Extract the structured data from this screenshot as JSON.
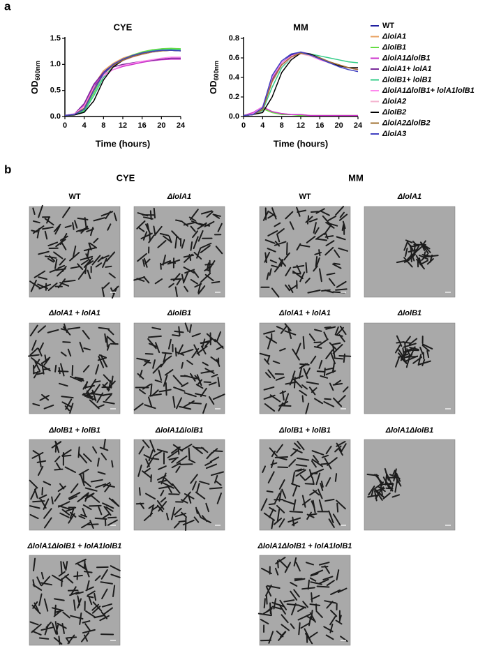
{
  "panel_labels": [
    "a",
    "b"
  ],
  "chart_data": [
    {
      "type": "line",
      "title": "CYE",
      "y_label": "OD",
      "y_label_sub": "600nm",
      "x_label": "Time (hours)",
      "x": [
        0,
        2,
        4,
        6,
        8,
        10,
        12,
        14,
        16,
        18,
        20,
        22,
        24
      ],
      "xlim": [
        0,
        24
      ],
      "xticks": [
        0,
        4,
        8,
        12,
        16,
        20,
        24
      ],
      "ylim": [
        0,
        1.5
      ],
      "yticks": [
        {
          "value": 0,
          "label": "0.0"
        },
        0.5,
        {
          "value": 1,
          "label": "1.0"
        },
        1.5
      ],
      "series": [
        {
          "color": "#1f1fa0",
          "values": [
            0.02,
            0.04,
            0.15,
            0.55,
            0.85,
            1.0,
            1.1,
            1.17,
            1.22,
            1.25,
            1.27,
            1.28,
            1.27
          ]
        },
        {
          "color": "#e8a060",
          "values": [
            0.02,
            0.04,
            0.2,
            0.6,
            0.88,
            1.02,
            1.12,
            1.18,
            1.23,
            1.26,
            1.28,
            1.29,
            1.28
          ]
        },
        {
          "color": "#66dd44",
          "values": [
            0.02,
            0.04,
            0.12,
            0.45,
            0.8,
            0.98,
            1.1,
            1.18,
            1.24,
            1.28,
            1.3,
            1.31,
            1.3
          ]
        },
        {
          "color": "#cc33cc",
          "values": [
            0.02,
            0.05,
            0.22,
            0.6,
            0.8,
            0.9,
            0.96,
            1.0,
            1.04,
            1.07,
            1.09,
            1.1,
            1.1
          ]
        },
        {
          "color": "#7a2a9a",
          "values": [
            0.02,
            0.05,
            0.25,
            0.62,
            0.85,
            0.95,
            1.0,
            1.03,
            1.06,
            1.08,
            1.1,
            1.12,
            1.12
          ]
        },
        {
          "color": "#33cc88",
          "values": [
            0.02,
            0.03,
            0.1,
            0.4,
            0.75,
            0.95,
            1.08,
            1.16,
            1.22,
            1.26,
            1.28,
            1.29,
            1.28
          ]
        },
        {
          "color": "#ff88ee",
          "values": [
            0.02,
            0.05,
            0.2,
            0.55,
            0.78,
            0.9,
            0.98,
            1.02,
            1.06,
            1.09,
            1.12,
            1.14,
            1.14
          ]
        },
        {
          "color": "#f4b6d0",
          "values": [
            0.02,
            0.04,
            0.15,
            0.5,
            0.8,
            0.97,
            1.07,
            1.14,
            1.19,
            1.23,
            1.26,
            1.27,
            1.26
          ]
        },
        {
          "color": "#000000",
          "values": [
            0.02,
            0.03,
            0.08,
            0.3,
            0.7,
            0.95,
            1.08,
            1.15,
            1.2,
            1.24,
            1.26,
            1.27,
            1.26
          ]
        },
        {
          "color": "#a07030",
          "values": [
            0.02,
            0.04,
            0.16,
            0.52,
            0.82,
            0.98,
            1.08,
            1.15,
            1.2,
            1.24,
            1.26,
            1.27,
            1.26
          ]
        },
        {
          "color": "#4040c0",
          "values": [
            0.02,
            0.04,
            0.14,
            0.5,
            0.82,
            1.0,
            1.1,
            1.17,
            1.22,
            1.25,
            1.27,
            1.27,
            1.26
          ]
        }
      ]
    },
    {
      "type": "line",
      "title": "MM",
      "y_label": "OD",
      "y_label_sub": "600nm",
      "x_label": "Time (hours)",
      "x": [
        0,
        2,
        4,
        6,
        8,
        10,
        12,
        14,
        16,
        18,
        20,
        22,
        24
      ],
      "xlim": [
        0,
        24
      ],
      "xticks": [
        0,
        4,
        8,
        12,
        16,
        20,
        24
      ],
      "ylim": [
        0,
        0.8
      ],
      "yticks": [
        {
          "value": 0,
          "label": "0.0"
        },
        0.2,
        0.4,
        0.6,
        0.8
      ],
      "legend": "right",
      "series": [
        {
          "name": "WT",
          "color": "#1f1fa0",
          "values": [
            0.01,
            0.02,
            0.08,
            0.4,
            0.55,
            0.63,
            0.66,
            0.63,
            0.6,
            0.56,
            0.52,
            0.5,
            0.48
          ]
        },
        {
          "name": "ΔlolA1",
          "color": "#e8a060",
          "values": [
            0.01,
            0.03,
            0.09,
            0.05,
            0.03,
            0.02,
            0.02,
            0.01,
            0.01,
            0.01,
            0.01,
            0.01,
            0.01
          ]
        },
        {
          "name": "ΔlolB1",
          "color": "#66dd44",
          "values": [
            0.01,
            0.03,
            0.08,
            0.04,
            0.02,
            0.02,
            0.01,
            0.01,
            0.01,
            0.01,
            0.01,
            0.01,
            0.01
          ]
        },
        {
          "name": "ΔlolA1ΔlolB1",
          "color": "#cc33cc",
          "values": [
            0.01,
            0.04,
            0.1,
            0.05,
            0.03,
            0.02,
            0.02,
            0.01,
            0.01,
            0.01,
            0.01,
            0.01,
            0.01
          ]
        },
        {
          "name": "ΔlolA1+ lolA1",
          "color": "#7a2a9a",
          "values": [
            0.01,
            0.02,
            0.07,
            0.38,
            0.55,
            0.62,
            0.66,
            0.64,
            0.6,
            0.56,
            0.53,
            0.5,
            0.48
          ]
        },
        {
          "name": "ΔlolB1+ lolB1",
          "color": "#33cc88",
          "values": [
            0.01,
            0.02,
            0.06,
            0.3,
            0.5,
            0.6,
            0.65,
            0.64,
            0.62,
            0.6,
            0.58,
            0.56,
            0.55
          ]
        },
        {
          "name": "ΔlolA1ΔlolB1+ lolA1lolB1",
          "color": "#ff88ee",
          "values": [
            0.01,
            0.03,
            0.1,
            0.4,
            0.55,
            0.62,
            0.65,
            0.62,
            0.58,
            0.55,
            0.52,
            0.5,
            0.48
          ]
        },
        {
          "name": "ΔlolA2",
          "color": "#f4b6d0",
          "values": [
            0.01,
            0.02,
            0.07,
            0.35,
            0.52,
            0.6,
            0.64,
            0.62,
            0.59,
            0.56,
            0.53,
            0.5,
            0.49
          ]
        },
        {
          "name": "ΔlolB2",
          "color": "#000000",
          "values": [
            0.01,
            0.02,
            0.04,
            0.2,
            0.45,
            0.58,
            0.65,
            0.64,
            0.6,
            0.55,
            0.52,
            0.5,
            0.5
          ]
        },
        {
          "name": "ΔlolA2ΔlolB2",
          "color": "#a07030",
          "values": [
            0.01,
            0.02,
            0.07,
            0.36,
            0.53,
            0.61,
            0.65,
            0.63,
            0.6,
            0.56,
            0.53,
            0.5,
            0.48
          ]
        },
        {
          "name": "ΔlolA3",
          "color": "#4040c0",
          "values": [
            0.01,
            0.02,
            0.09,
            0.42,
            0.57,
            0.64,
            0.66,
            0.63,
            0.59,
            0.55,
            0.51,
            0.48,
            0.46
          ]
        }
      ]
    }
  ],
  "panel_b": {
    "groups": [
      {
        "title": "CYE",
        "images": [
          "WT",
          "ΔlolA1",
          "ΔlolA1 + lolA1",
          "ΔlolB1",
          "ΔlolB1 + lolB1",
          "ΔlolA1ΔlolB1",
          "ΔlolA1ΔlolB1 + lolA1lolB1"
        ]
      },
      {
        "title": "MM",
        "images": [
          "WT",
          "ΔlolA1",
          "ΔlolA1 + lolA1",
          "ΔlolB1",
          "ΔlolB1 + lolB1",
          "ΔlolA1ΔlolB1",
          "ΔlolA1ΔlolB1 + lolA1lolB1"
        ]
      }
    ]
  }
}
